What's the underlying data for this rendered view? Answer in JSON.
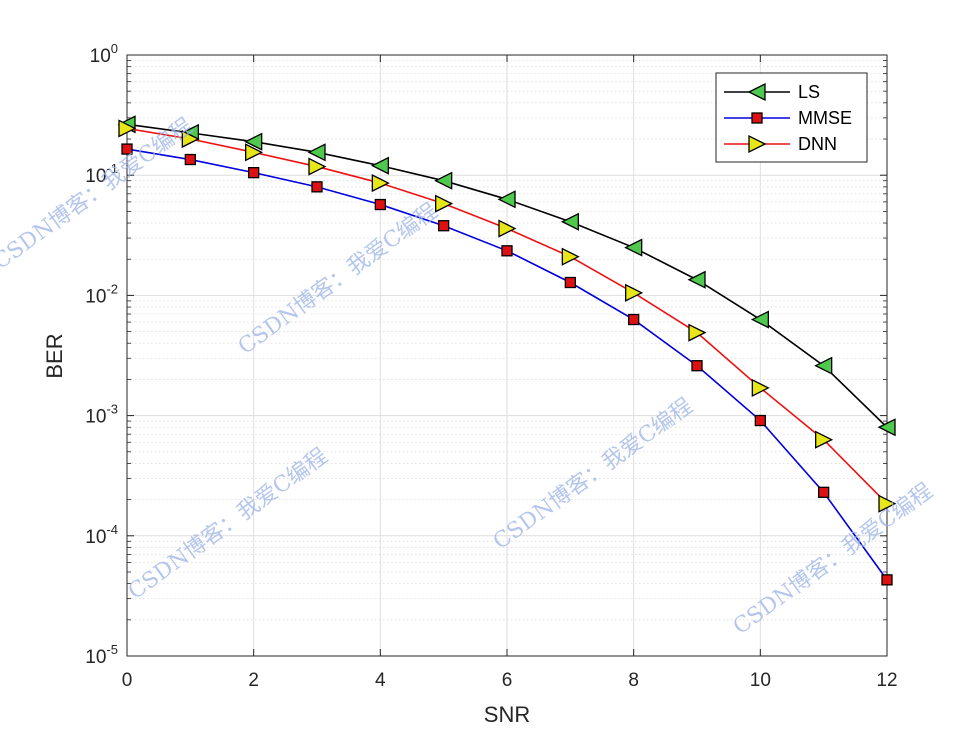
{
  "chart_data": {
    "type": "line",
    "xlabel": "SNR",
    "ylabel": "BER",
    "xlim": [
      0,
      12
    ],
    "ylim": [
      1e-05,
      1
    ],
    "yscale": "log",
    "grid": true,
    "minor_grid": true,
    "legend_position": "top-right",
    "x_ticks": [
      "0",
      "2",
      "4",
      "6",
      "8",
      "10",
      "12"
    ],
    "y_ticks": [
      {
        "base": "10",
        "exp": "0"
      },
      {
        "base": "10",
        "exp": "-1"
      },
      {
        "base": "10",
        "exp": "-2"
      },
      {
        "base": "10",
        "exp": "-3"
      },
      {
        "base": "10",
        "exp": "-4"
      },
      {
        "base": "10",
        "exp": "-5"
      }
    ],
    "x": [
      0,
      1,
      2,
      3,
      4,
      5,
      6,
      7,
      8,
      9,
      10,
      11,
      12
    ],
    "series": [
      {
        "name": "LS",
        "line_color": "#000000",
        "marker": "triangle-left",
        "marker_color": "#4ec94e",
        "values": [
          0.265,
          0.225,
          0.19,
          0.155,
          0.12,
          0.09,
          0.063,
          0.041,
          0.025,
          0.0135,
          0.0063,
          0.0026,
          0.0008
        ]
      },
      {
        "name": "MMSE",
        "line_color": "#0000dd",
        "marker": "square",
        "marker_color": "#dd1111",
        "values": [
          0.165,
          0.135,
          0.105,
          0.08,
          0.057,
          0.038,
          0.0235,
          0.0128,
          0.0063,
          0.0026,
          0.00091,
          0.00023,
          4.3e-05
        ]
      },
      {
        "name": "DNN",
        "line_color": "#ee1111",
        "marker": "triangle-right",
        "marker_color": "#e6e619",
        "values": [
          0.245,
          0.2,
          0.155,
          0.118,
          0.086,
          0.058,
          0.036,
          0.021,
          0.0105,
          0.0049,
          0.0017,
          0.00063,
          0.000185
        ]
      }
    ]
  },
  "watermark": "CSDN博客：我爱C编程"
}
